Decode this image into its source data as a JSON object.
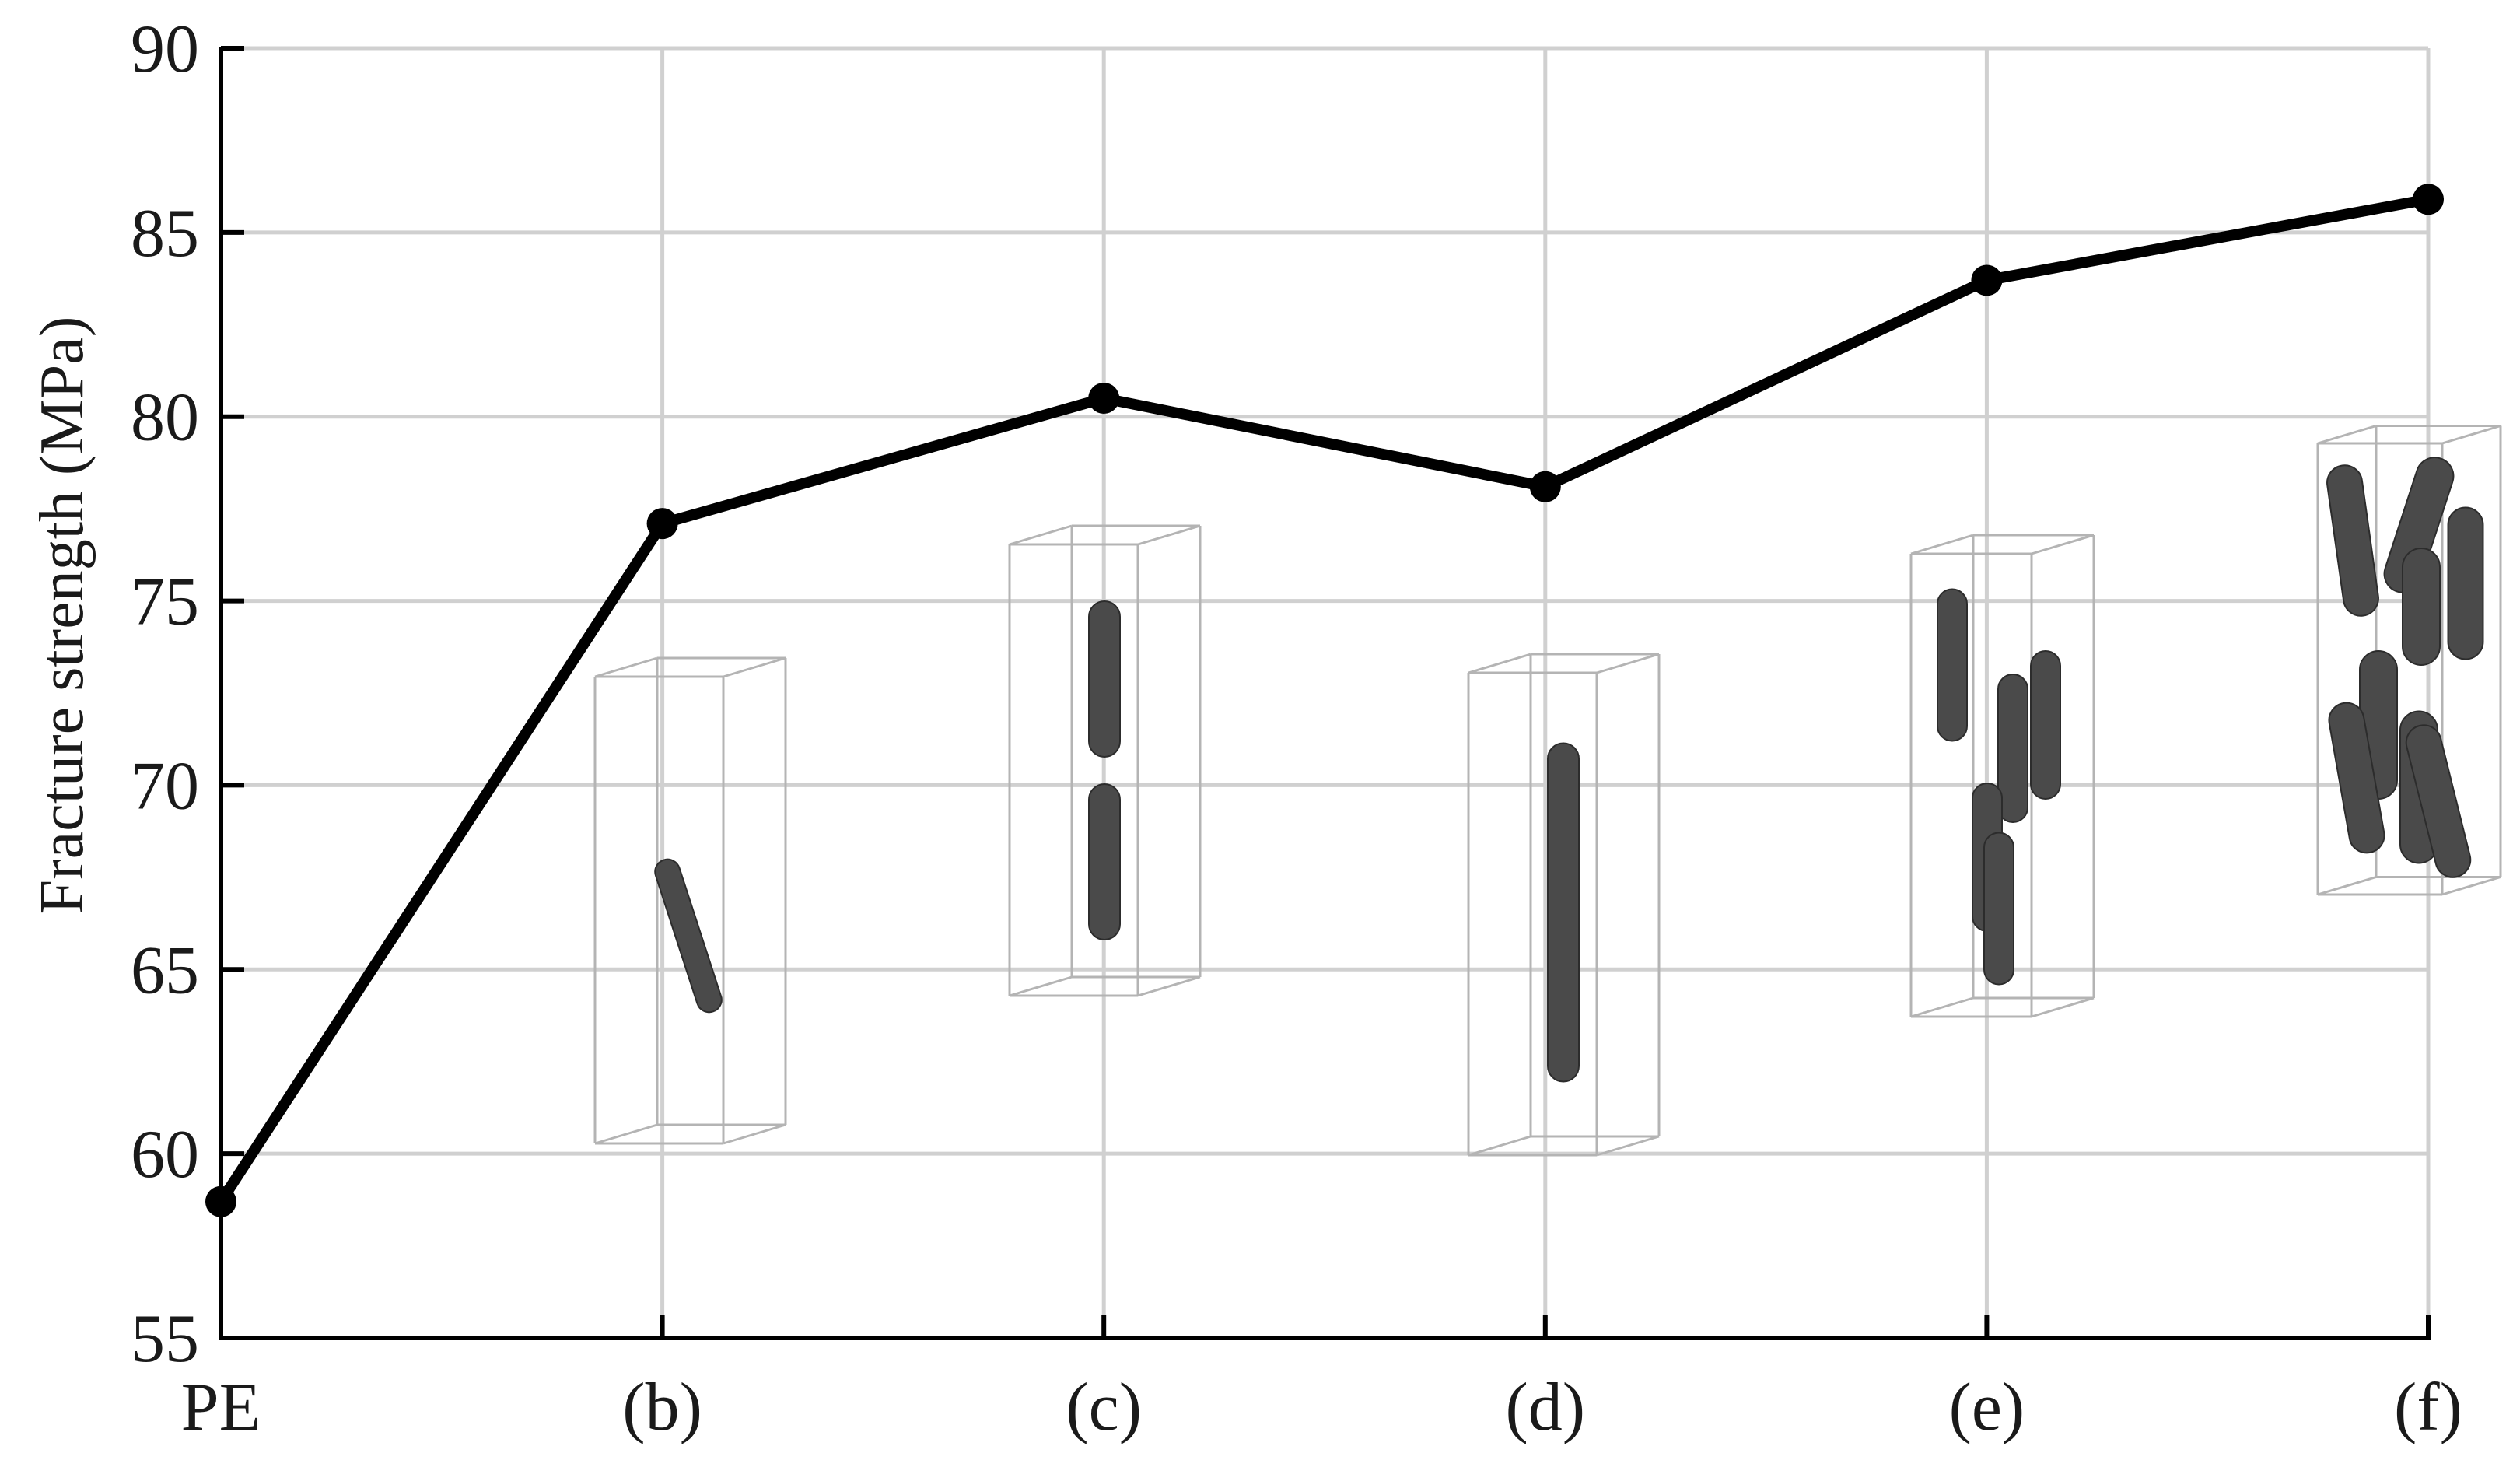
{
  "chart_data": {
    "type": "line",
    "categories": [
      "PE",
      "(b)",
      "(c)",
      "(d)",
      "(e)",
      "(f)"
    ],
    "values": [
      58.7,
      77.1,
      80.5,
      78.1,
      83.7,
      85.9
    ],
    "title": "",
    "xlabel": "",
    "ylabel": "Fracture strength (MPa)",
    "ylim": [
      55,
      90
    ],
    "yticks": [
      55,
      60,
      65,
      70,
      75,
      80,
      85,
      90
    ],
    "grid": true,
    "legend": "none",
    "line_color": "#000000",
    "marker": "filled-circle",
    "insets": [
      {
        "category": "(b)",
        "depicts": "single tilted nanotube in simulation box"
      },
      {
        "category": "(c)",
        "depicts": "two aligned nanotube segments in simulation box"
      },
      {
        "category": "(d)",
        "depicts": "single long vertical nanotube in simulation box"
      },
      {
        "category": "(e)",
        "depicts": "several nanotubes in simulation box"
      },
      {
        "category": "(f)",
        "depicts": "many tilted nanotubes in simulation box"
      }
    ]
  }
}
